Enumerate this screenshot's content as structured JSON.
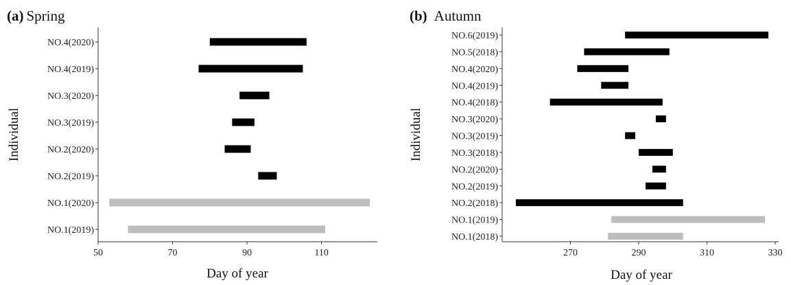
{
  "chart_data": [
    {
      "type": "bar",
      "orientation": "horizontal-range",
      "panel_label": "(a)",
      "title": "Spring",
      "xlabel": "Day of year",
      "ylabel": "Individual",
      "xlim": [
        50,
        125
      ],
      "xticks": [
        50,
        70,
        90,
        110
      ],
      "categories": [
        "NO.4(2020)",
        "NO.4(2019)",
        "NO.3(2020)",
        "NO.3(2019)",
        "NO.2(2020)",
        "NO.2(2019)",
        "NO.1(2020)",
        "NO.1(2019)"
      ],
      "ranges": [
        [
          80,
          106
        ],
        [
          77,
          105
        ],
        [
          88,
          96
        ],
        [
          86,
          92
        ],
        [
          84,
          91
        ],
        [
          93,
          98
        ],
        [
          53,
          123
        ],
        [
          58,
          111
        ]
      ],
      "bar_colors": [
        "#000000",
        "#000000",
        "#000000",
        "#000000",
        "#000000",
        "#000000",
        "#bdbdbd",
        "#bdbdbd"
      ]
    },
    {
      "type": "bar",
      "orientation": "horizontal-range",
      "panel_label": "(b)",
      "title": "Autumn",
      "xlabel": "Day of year",
      "ylabel": "Individual",
      "xlim": [
        250,
        331
      ],
      "xticks": [
        270,
        290,
        310,
        330
      ],
      "categories": [
        "NO.6(2019)",
        "NO.5(2018)",
        "NO.4(2020)",
        "NO.4(2019)",
        "NO.4(2018)",
        "NO.3(2020)",
        "NO.3(2019)",
        "NO.3(2018)",
        "NO.2(2020)",
        "NO.2(2019)",
        "NO.2(2018)",
        "NO.1(2019)",
        "NO.1(2018)"
      ],
      "ranges": [
        [
          286,
          328
        ],
        [
          274,
          299
        ],
        [
          272,
          287
        ],
        [
          279,
          287
        ],
        [
          264,
          297
        ],
        [
          295,
          298
        ],
        [
          286,
          289
        ],
        [
          290,
          300
        ],
        [
          294,
          298
        ],
        [
          292,
          298
        ],
        [
          254,
          303
        ],
        [
          282,
          327
        ],
        [
          281,
          303
        ]
      ],
      "bar_colors": [
        "#000000",
        "#000000",
        "#000000",
        "#000000",
        "#000000",
        "#000000",
        "#000000",
        "#000000",
        "#000000",
        "#000000",
        "#000000",
        "#bdbdbd",
        "#bdbdbd"
      ]
    }
  ]
}
